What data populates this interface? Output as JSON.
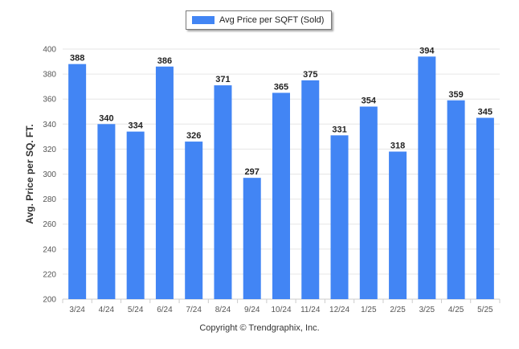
{
  "chart_data": {
    "type": "bar",
    "title": "",
    "xlabel": "",
    "ylabel": "Avg. Price per SQ. FT.",
    "categories": [
      "3/24",
      "4/24",
      "5/24",
      "6/24",
      "7/24",
      "8/24",
      "9/24",
      "10/24",
      "11/24",
      "12/24",
      "1/25",
      "2/25",
      "3/25",
      "4/25",
      "5/25"
    ],
    "series": [
      {
        "name": "Avg Price per SQFT (Sold)",
        "values": [
          388,
          340,
          334,
          386,
          326,
          371,
          297,
          365,
          375,
          331,
          354,
          318,
          394,
          359,
          345
        ]
      }
    ],
    "ylim": [
      200,
      400
    ],
    "yticks": [
      200,
      220,
      240,
      260,
      280,
      300,
      320,
      340,
      360,
      380,
      400
    ],
    "grid": true,
    "legend_position": "top-center",
    "data_labels": true,
    "colors": {
      "bar": "#4285f4",
      "grid": "#e6e6e6",
      "axis": "#cccccc"
    }
  },
  "credit": "Copyright © Trendgraphix, Inc."
}
